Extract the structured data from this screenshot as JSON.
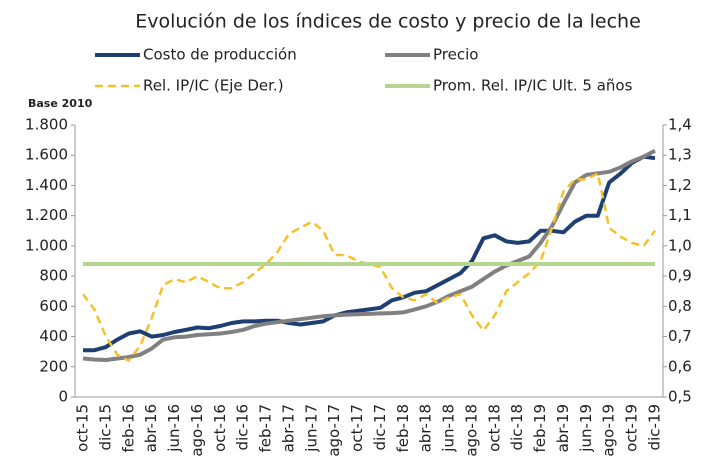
{
  "chart_data": {
    "type": "line",
    "title": "Evolución de los índices de costo y precio de la leche",
    "y_axis_label": "Base 2010",
    "categories": [
      "oct-15",
      null,
      "dic-15",
      null,
      "feb-16",
      null,
      "abr-16",
      null,
      "jun-16",
      null,
      "ago-16",
      null,
      "oct-16",
      null,
      "dic-16",
      null,
      "feb-17",
      null,
      "abr-17",
      null,
      "jun-17",
      null,
      "ago-17",
      null,
      "oct-17",
      null,
      "dic-17",
      null,
      "feb-18",
      null,
      "abr-18",
      null,
      "jun-18",
      null,
      "ago-18",
      null,
      "oct-18",
      null,
      "dic-18",
      null,
      "feb-19",
      null,
      "abr-19",
      null,
      "jun-19",
      null,
      "ago-19",
      null,
      "oct-19",
      null,
      "dic-19"
    ],
    "series": [
      {
        "name": "Costo de producción",
        "color": "#1f3f73",
        "dash": false,
        "values": [
          310,
          310,
          330,
          380,
          420,
          435,
          400,
          410,
          430,
          445,
          460,
          455,
          470,
          490,
          500,
          500,
          505,
          505,
          490,
          480,
          490,
          500,
          540,
          560,
          570,
          580,
          590,
          640,
          660,
          690,
          700,
          740,
          780,
          820,
          900,
          1050,
          1070,
          1030,
          1020,
          1030,
          1100,
          1100,
          1090,
          1160,
          1200,
          1200,
          1420,
          1480,
          1550,
          1590,
          1580
        ]
      },
      {
        "name": "Precio",
        "color": "#808080",
        "dash": false,
        "values": [
          255,
          248,
          245,
          255,
          265,
          280,
          320,
          380,
          395,
          400,
          410,
          415,
          420,
          430,
          445,
          470,
          485,
          495,
          505,
          515,
          525,
          535,
          540,
          545,
          548,
          550,
          553,
          555,
          560,
          580,
          600,
          630,
          670,
          700,
          730,
          780,
          830,
          870,
          900,
          930,
          1020,
          1130,
          1280,
          1420,
          1470,
          1480,
          1490,
          1520,
          1560,
          1590,
          1630
        ]
      },
      {
        "name": "Rel. IP/IC (Eje Der.)",
        "color": "#f5c02a",
        "dash": true,
        "axis": "y2",
        "values": [
          0.84,
          0.79,
          0.7,
          0.64,
          0.62,
          0.67,
          0.76,
          0.87,
          0.89,
          0.88,
          0.9,
          0.88,
          0.86,
          0.86,
          0.88,
          0.91,
          0.94,
          0.98,
          1.04,
          1.06,
          1.08,
          1.05,
          0.97,
          0.97,
          0.95,
          0.94,
          0.93,
          0.86,
          0.83,
          0.82,
          0.84,
          0.81,
          0.83,
          0.84,
          0.77,
          0.72,
          0.77,
          0.85,
          0.88,
          0.91,
          0.95,
          1.06,
          1.18,
          1.22,
          1.22,
          1.24,
          1.06,
          1.03,
          1.01,
          1.0,
          1.05
        ]
      },
      {
        "name": "Prom. Rel. IP/IC Ult. 5 años",
        "color": "#b5d68e",
        "dash": false,
        "axis": "y2",
        "values": [
          0.94,
          0.94,
          0.94,
          0.94,
          0.94,
          0.94,
          0.94,
          0.94,
          0.94,
          0.94,
          0.94,
          0.94,
          0.94,
          0.94,
          0.94,
          0.94,
          0.94,
          0.94,
          0.94,
          0.94,
          0.94,
          0.94,
          0.94,
          0.94,
          0.94,
          0.94,
          0.94,
          0.94,
          0.94,
          0.94,
          0.94,
          0.94,
          0.94,
          0.94,
          0.94,
          0.94,
          0.94,
          0.94,
          0.94,
          0.94,
          0.94,
          0.94,
          0.94,
          0.94,
          0.94,
          0.94,
          0.94,
          0.94,
          0.94,
          0.94,
          0.94
        ]
      }
    ],
    "ylim": [
      0,
      1800
    ],
    "yticks": [
      0,
      200,
      400,
      600,
      800,
      {
        "value": 1000,
        "label": "1.000"
      },
      {
        "value": 1200,
        "label": "1.200"
      },
      {
        "value": 1400,
        "label": "1.400"
      },
      {
        "value": 1600,
        "label": "1.600"
      },
      {
        "value": 1800,
        "label": "1.800"
      }
    ],
    "y2lim": [
      0.5,
      1.4
    ],
    "y2ticks": [
      {
        "value": 0.5,
        "label": "0,5"
      },
      {
        "value": 0.6,
        "label": "0,6"
      },
      {
        "value": 0.7,
        "label": "0,7"
      },
      {
        "value": 0.8,
        "label": "0,8"
      },
      {
        "value": 0.9,
        "label": "0,9"
      },
      {
        "value": 1.0,
        "label": "1,0"
      },
      {
        "value": 1.1,
        "label": "1,1"
      },
      {
        "value": 1.2,
        "label": "1,2"
      },
      {
        "value": 1.3,
        "label": "1,3"
      },
      {
        "value": 1.4,
        "label": "1,4"
      }
    ],
    "grid": false
  }
}
